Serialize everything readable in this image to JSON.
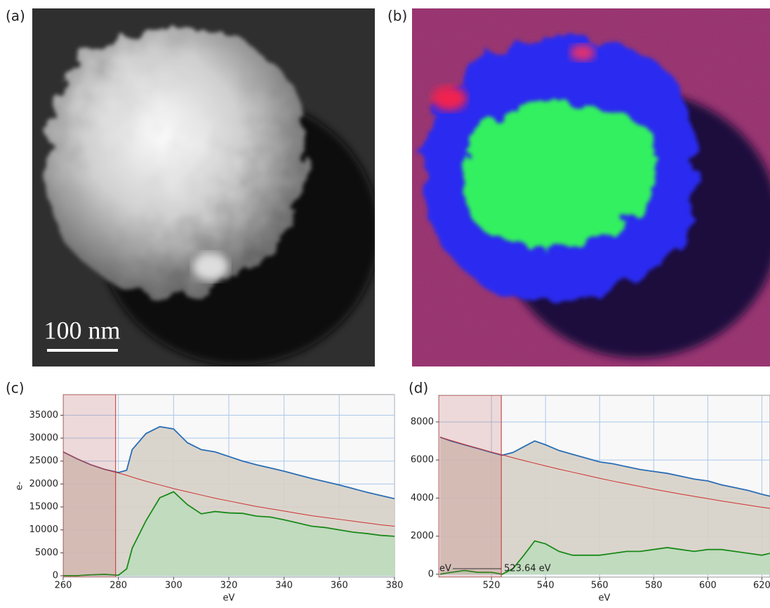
{
  "images": {
    "a": {
      "label": "(a)",
      "scale_bar": "100 nm"
    },
    "b": {
      "label": "(b)"
    }
  },
  "chart_data": [
    {
      "type": "spectrum",
      "panel_label": "(c)",
      "x_label": "eV",
      "y_label": "e-",
      "xlim": [
        260,
        380
      ],
      "ylim": [
        -300,
        39500
      ],
      "xticks": [
        260,
        280,
        300,
        320,
        340,
        360,
        380
      ],
      "yticks": [
        0,
        5000,
        10000,
        15000,
        20000,
        25000,
        30000,
        35000
      ],
      "grid": true,
      "window": [
        260,
        279
      ],
      "x": [
        260,
        265,
        270,
        275,
        280,
        283,
        285,
        290,
        295,
        300,
        305,
        310,
        315,
        320,
        325,
        330,
        335,
        340,
        345,
        350,
        355,
        360,
        365,
        370,
        375,
        380
      ],
      "series": [
        {
          "color": "#2a6db5",
          "fill": "#d6d0c6",
          "values": [
            27000,
            25500,
            24200,
            23200,
            22500,
            23000,
            27500,
            31000,
            32500,
            32000,
            29000,
            27500,
            27000,
            26000,
            25000,
            24200,
            23500,
            22800,
            22000,
            21200,
            20500,
            19800,
            19000,
            18200,
            17500,
            16800
          ]
        },
        {
          "color": "#d03030",
          "values": [
            27000,
            25500,
            24200,
            23200,
            22400,
            21900,
            21500,
            20600,
            19800,
            19000,
            18300,
            17600,
            16900,
            16300,
            15700,
            15100,
            14600,
            14100,
            13600,
            13100,
            12700,
            12300,
            11900,
            11500,
            11100,
            10800
          ]
        },
        {
          "color": "#1a8a1a",
          "fill": "#bcdcbc",
          "values": [
            0,
            0,
            200,
            300,
            100,
            1500,
            6000,
            12000,
            17000,
            18300,
            15500,
            13500,
            14000,
            13700,
            13600,
            13000,
            12800,
            12200,
            11500,
            10800,
            10500,
            10000,
            9500,
            9200,
            8800,
            8600
          ]
        }
      ]
    },
    {
      "type": "spectrum",
      "panel_label": "(d)",
      "x_label": "eV",
      "xlim": [
        500.5,
        623
      ],
      "ylim": [
        -150,
        9400
      ],
      "xticks": [
        520,
        540,
        560,
        580,
        600,
        620
      ],
      "yticks": [
        0,
        2000,
        4000,
        6000,
        8000
      ],
      "grid": true,
      "window": [
        500.5,
        523.64
      ],
      "annotations": [
        "eV",
        "523.64 eV"
      ],
      "x": [
        501,
        505,
        510,
        515,
        520,
        524,
        528,
        532,
        536,
        540,
        545,
        550,
        555,
        560,
        565,
        570,
        575,
        580,
        585,
        590,
        595,
        600,
        605,
        610,
        615,
        620,
        623
      ],
      "series": [
        {
          "color": "#2a6db5",
          "fill": "#d6d0c6",
          "values": [
            7200,
            7000,
            6800,
            6600,
            6400,
            6250,
            6400,
            6700,
            7000,
            6800,
            6500,
            6300,
            6100,
            5900,
            5800,
            5650,
            5500,
            5400,
            5300,
            5150,
            5000,
            4900,
            4700,
            4550,
            4400,
            4200,
            4100
          ]
        },
        {
          "color": "#d03030",
          "values": [
            7200,
            7030,
            6820,
            6620,
            6420,
            6270,
            6120,
            5970,
            5830,
            5690,
            5520,
            5360,
            5200,
            5040,
            4890,
            4750,
            4610,
            4470,
            4340,
            4210,
            4090,
            3970,
            3850,
            3740,
            3630,
            3520,
            3460
          ]
        },
        {
          "color": "#1a8a1a",
          "fill": "#bcdcbc",
          "values": [
            0,
            100,
            200,
            100,
            100,
            0,
            300,
            1000,
            1750,
            1600,
            1200,
            1000,
            1000,
            1000,
            1100,
            1200,
            1200,
            1300,
            1400,
            1300,
            1200,
            1300,
            1300,
            1200,
            1100,
            1000,
            1100
          ]
        }
      ]
    }
  ]
}
